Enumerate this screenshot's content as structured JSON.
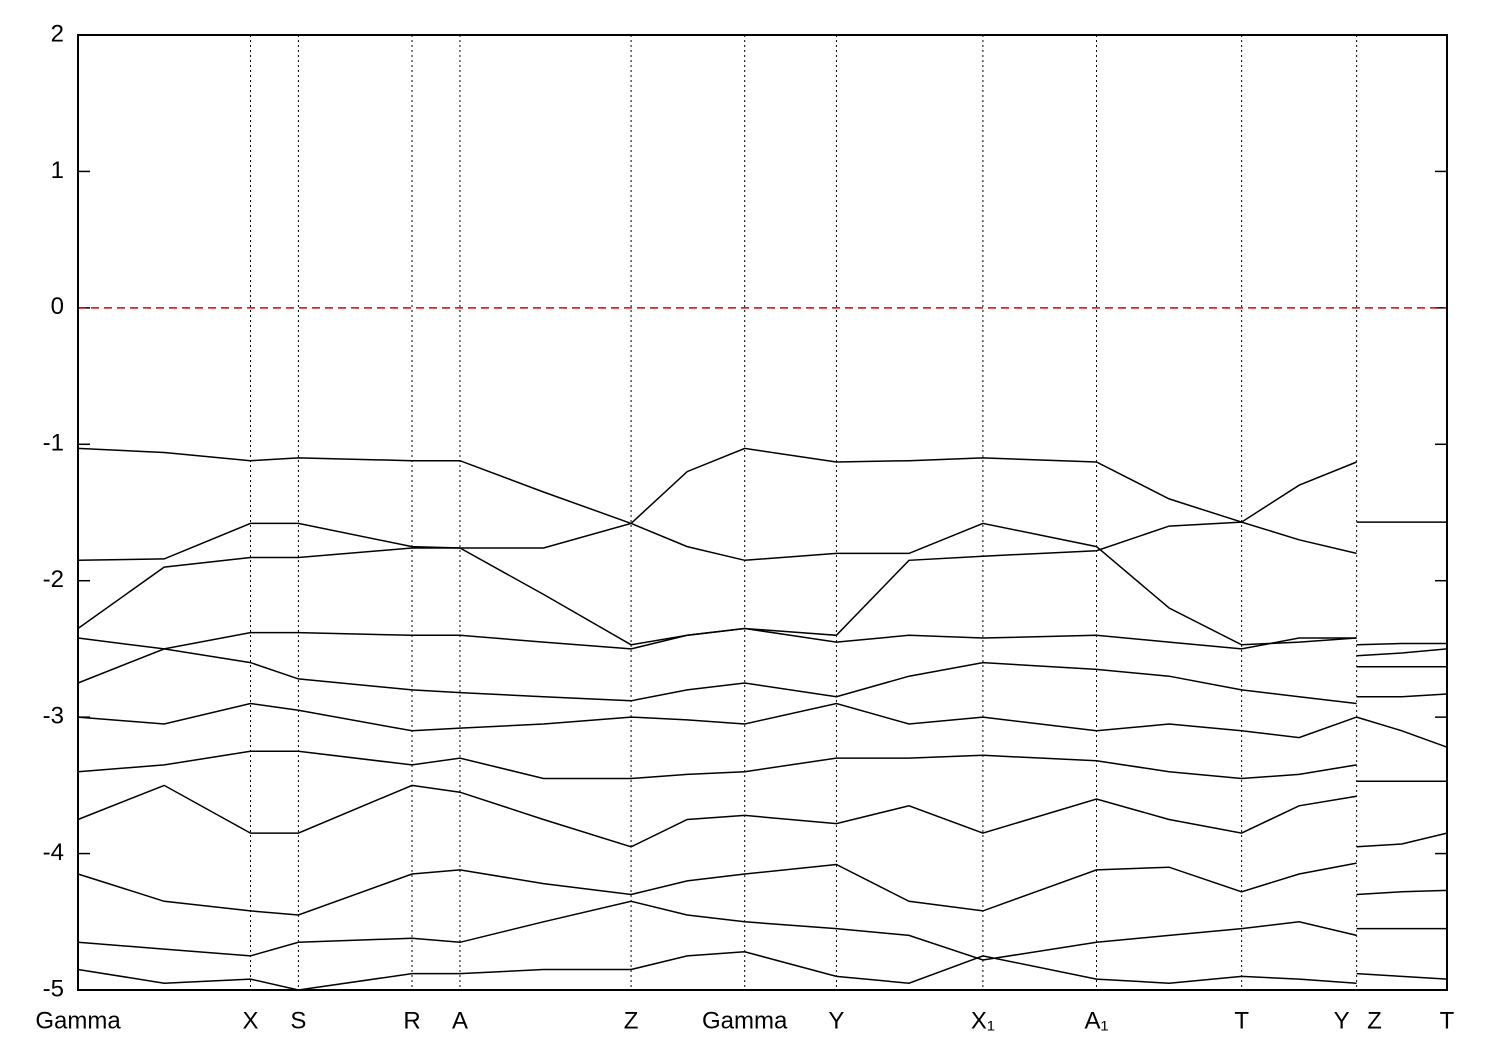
{
  "chart_data": {
    "type": "line",
    "x": [
      0,
      0.063,
      0.126,
      0.161,
      0.244,
      0.279,
      0.34,
      0.404,
      0.445,
      0.487,
      0.554,
      0.607,
      0.661,
      0.744,
      0.797,
      0.85,
      0.892,
      0.934,
      0.934,
      0.934,
      0.967,
      1.0
    ],
    "series": [
      {
        "color": "#000000",
        "values": [
          -1.03,
          -1.06,
          -1.12,
          -1.1,
          -1.12,
          -1.12,
          -1.35,
          -1.58,
          -1.2,
          -1.03,
          -1.13,
          -1.12,
          -1.1,
          -1.13,
          -1.4,
          -1.57,
          -1.3,
          -1.13,
          null,
          -1.57,
          -1.57,
          -1.57
        ]
      },
      {
        "color": "#000000",
        "values": [
          -1.85,
          -1.84,
          -1.58,
          -1.58,
          -1.75,
          -1.76,
          -1.76,
          -1.58,
          -1.75,
          -1.85,
          -1.8,
          -1.8,
          -1.58,
          -1.75,
          -2.2,
          -2.47,
          -2.45,
          -2.42,
          null,
          -2.47,
          -2.46,
          -2.46
        ]
      },
      {
        "color": "#000000",
        "values": [
          -2.35,
          -1.9,
          -1.83,
          -1.83,
          -1.76,
          -1.76,
          -2.1,
          -2.47,
          -2.4,
          -2.35,
          -2.4,
          -1.85,
          -1.82,
          -1.78,
          -1.6,
          -1.57,
          -1.7,
          -1.8,
          null,
          -2.55,
          -2.53,
          -2.5
        ]
      },
      {
        "color": "#000000",
        "values": [
          -2.42,
          -2.5,
          -2.38,
          -2.38,
          -2.4,
          -2.4,
          -2.45,
          -2.5,
          -2.4,
          -2.35,
          -2.45,
          -2.4,
          -2.42,
          -2.4,
          -2.45,
          -2.5,
          -2.42,
          -2.42,
          null,
          -2.63,
          -2.63,
          -2.63
        ]
      },
      {
        "color": "#000000",
        "values": [
          -2.75,
          -2.5,
          -2.6,
          -2.72,
          -2.8,
          -2.82,
          -2.85,
          -2.88,
          -2.8,
          -2.75,
          -2.85,
          -2.7,
          -2.6,
          -2.65,
          -2.7,
          -2.8,
          -2.85,
          -2.9,
          null,
          -2.85,
          -2.85,
          -2.83
        ]
      },
      {
        "color": "#000000",
        "values": [
          -3.0,
          -3.05,
          -2.9,
          -2.95,
          -3.1,
          -3.08,
          -3.05,
          -3.0,
          -3.02,
          -3.05,
          -2.9,
          -3.05,
          -3.0,
          -3.1,
          -3.05,
          -3.1,
          -3.15,
          -3.0,
          null,
          -3.0,
          -3.1,
          -3.22
        ]
      },
      {
        "color": "#000000",
        "values": [
          -3.4,
          -3.35,
          -3.25,
          -3.25,
          -3.35,
          -3.3,
          -3.45,
          -3.45,
          -3.42,
          -3.4,
          -3.3,
          -3.3,
          -3.28,
          -3.32,
          -3.4,
          -3.45,
          -3.42,
          -3.35,
          null,
          -3.47,
          -3.47,
          -3.47
        ]
      },
      {
        "color": "#000000",
        "values": [
          -3.75,
          -3.5,
          -3.85,
          -3.85,
          -3.5,
          -3.55,
          -3.75,
          -3.95,
          -3.75,
          -3.72,
          -3.78,
          -3.65,
          -3.85,
          -3.6,
          -3.75,
          -3.85,
          -3.65,
          -3.58,
          null,
          -3.95,
          -3.93,
          -3.85
        ]
      },
      {
        "color": "#000000",
        "values": [
          -4.15,
          -4.35,
          -4.42,
          -4.45,
          -4.15,
          -4.12,
          -4.22,
          -4.3,
          -4.2,
          -4.15,
          -4.08,
          -4.35,
          -4.42,
          -4.12,
          -4.1,
          -4.28,
          -4.15,
          -4.07,
          null,
          -4.3,
          -4.28,
          -4.27
        ]
      },
      {
        "color": "#000000",
        "values": [
          -4.65,
          -4.7,
          -4.75,
          -4.65,
          -4.62,
          -4.65,
          -4.5,
          -4.35,
          -4.45,
          -4.5,
          -4.55,
          -4.6,
          -4.78,
          -4.65,
          -4.6,
          -4.55,
          -4.5,
          -4.6,
          null,
          -4.55,
          -4.55,
          -4.55
        ]
      },
      {
        "color": "#000000",
        "values": [
          -4.85,
          -4.95,
          -4.92,
          -5.0,
          -4.88,
          -4.88,
          -4.85,
          -4.85,
          -4.75,
          -4.72,
          -4.9,
          -4.95,
          -4.75,
          -4.92,
          -4.95,
          -4.9,
          -4.92,
          -4.95,
          null,
          -4.88,
          -4.9,
          -4.92
        ]
      }
    ],
    "xlim": [
      0,
      1.0
    ],
    "ylim": [
      -5,
      2
    ],
    "yticks": [
      -5,
      -4,
      -3,
      -2,
      -1,
      0,
      1,
      2
    ],
    "xticks": [
      {
        "value": 0,
        "label": "Gamma"
      },
      {
        "value": 0.126,
        "label": "X"
      },
      {
        "value": 0.161,
        "label": "S"
      },
      {
        "value": 0.244,
        "label": "R"
      },
      {
        "value": 0.279,
        "label": "A"
      },
      {
        "value": 0.404,
        "label": "Z"
      },
      {
        "value": 0.487,
        "label": "Gamma"
      },
      {
        "value": 0.554,
        "label": "Y"
      },
      {
        "value": 0.661,
        "label": "X₁"
      },
      {
        "value": 0.744,
        "label": "A₁"
      },
      {
        "value": 0.85,
        "label": "T"
      },
      {
        "value": 0.923,
        "label": "Y"
      },
      {
        "value": 0.947,
        "label": "Z"
      },
      {
        "value": 1.0,
        "label": "T"
      }
    ],
    "xgrid_lines": [
      0.126,
      0.161,
      0.244,
      0.279,
      0.404,
      0.487,
      0.554,
      0.661,
      0.744,
      0.85,
      0.934
    ],
    "hline": {
      "value": 0,
      "color": "#dd0000"
    }
  }
}
